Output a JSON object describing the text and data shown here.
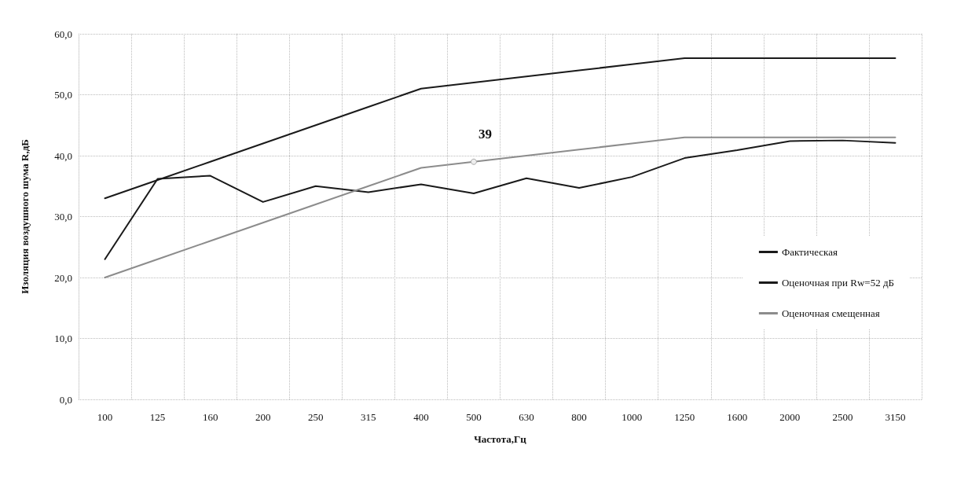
{
  "chart_data": {
    "type": "line",
    "xlabel": "Частота,Гц",
    "ylabel": "Изоляция воздушного шума R,дБ",
    "categories": [
      "100",
      "125",
      "160",
      "200",
      "250",
      "315",
      "400",
      "500",
      "630",
      "800",
      "1000",
      "1250",
      "1600",
      "2000",
      "2500",
      "3150"
    ],
    "series": [
      {
        "name": "Фактическая",
        "color": "#1a1a1a",
        "values": [
          23.0,
          36.2,
          36.7,
          32.4,
          35.0,
          34.0,
          35.3,
          33.8,
          36.3,
          34.7,
          36.5,
          39.6,
          40.9,
          42.4,
          42.5,
          42.1
        ]
      },
      {
        "name": "Оценочная при Rw=52 дБ",
        "color": "#1a1a1a",
        "values": [
          33,
          36,
          39,
          42,
          45,
          48,
          51,
          52,
          53,
          54,
          55,
          56,
          56,
          56,
          56,
          56
        ]
      },
      {
        "name": "Оценочная смещенная",
        "color": "#8c8c8c",
        "values": [
          20,
          23,
          26,
          29,
          32,
          35,
          38,
          39,
          40,
          41,
          42,
          43,
          43,
          43,
          43,
          43
        ],
        "value_labels": [
          null,
          null,
          null,
          null,
          null,
          null,
          null,
          "39",
          null,
          null,
          null,
          null,
          null,
          null,
          null,
          null
        ]
      }
    ],
    "ylim": [
      0,
      60
    ],
    "yticks": [
      {
        "value": 0,
        "label": "0,0"
      },
      {
        "value": 10,
        "label": "10,0"
      },
      {
        "value": 20,
        "label": "20,0"
      },
      {
        "value": 30,
        "label": "30,0"
      },
      {
        "value": 40,
        "label": "40,0"
      },
      {
        "value": 50,
        "label": "50,0"
      },
      {
        "value": 60,
        "label": "60,0"
      }
    ],
    "grid": true,
    "legend": "right",
    "marker": "none",
    "line_style": "solid"
  }
}
